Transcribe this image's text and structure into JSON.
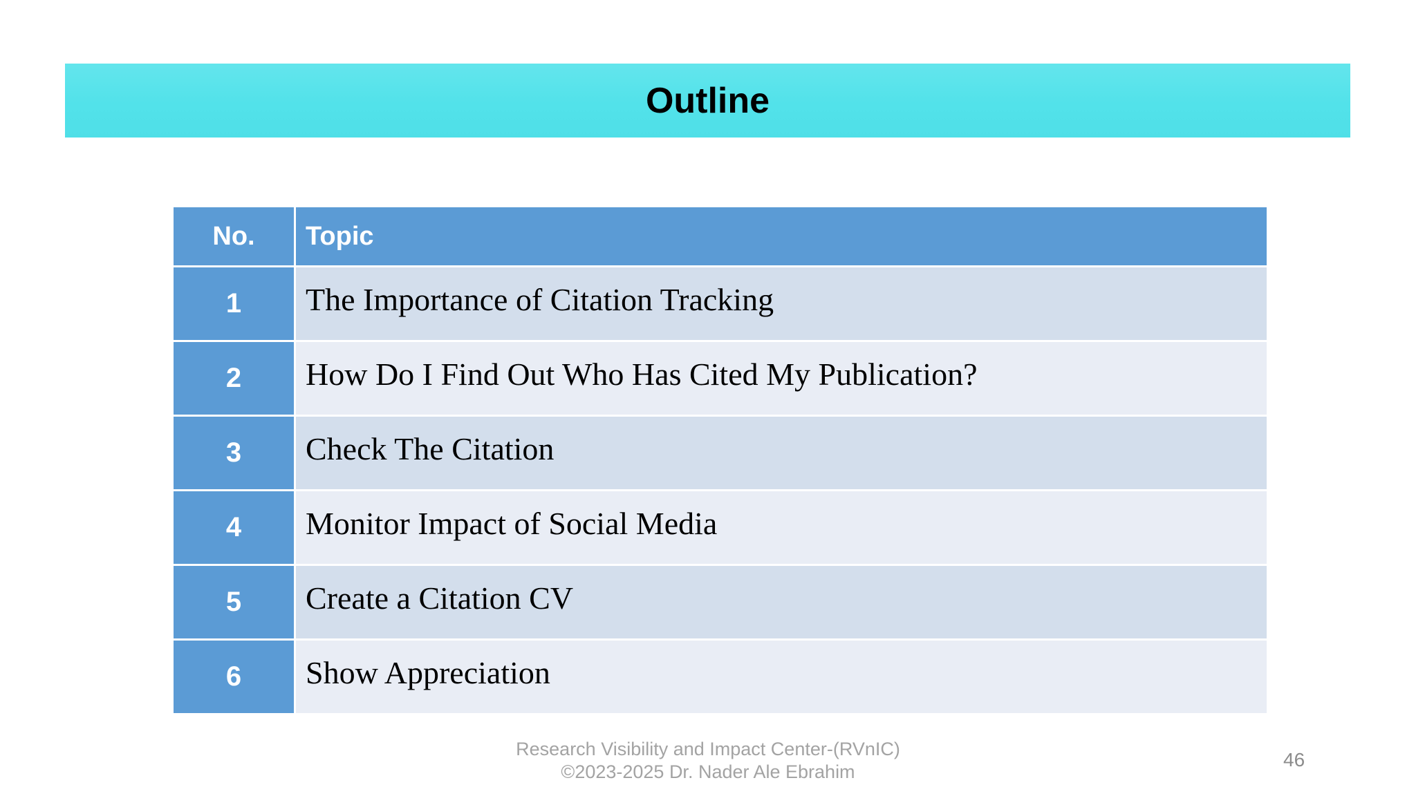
{
  "slide": {
    "title": "Outline",
    "page_number": "46",
    "footer": {
      "line1": "Research Visibility and Impact Center-(RVnIC)",
      "line2": "©2023-2025 Dr. Nader Ale Ebrahim"
    }
  },
  "table": {
    "columns": [
      "No.",
      "Topic"
    ],
    "rows": [
      {
        "no": "1",
        "topic": "The Importance of Citation Tracking"
      },
      {
        "no": "2",
        "topic": "How Do I Find Out Who Has Cited My Publication?"
      },
      {
        "no": "3",
        "topic": "Check The Citation"
      },
      {
        "no": "4",
        "topic": "Monitor Impact of Social Media"
      },
      {
        "no": "5",
        "topic": "Create a Citation CV"
      },
      {
        "no": "6",
        "topic": "Show Appreciation"
      }
    ]
  },
  "colors": {
    "title_bar": "#52e2ea",
    "table_header": "#5b9bd5",
    "number_column": "#5b9bd5",
    "row_odd": "#d3deec",
    "row_even": "#e9edf5",
    "footer_text": "#a3a3a3",
    "title_text": "#000000",
    "header_text": "#ffffff"
  }
}
